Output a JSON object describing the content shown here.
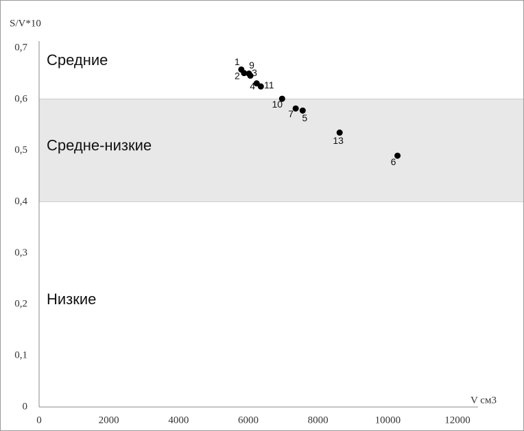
{
  "chart_data": {
    "type": "scatter",
    "ylabel": "S/V*10",
    "xlabel": "V см3",
    "x": [
      5800,
      5880,
      6020,
      6060,
      6240,
      6360,
      6970,
      7360,
      7560,
      8620,
      10280
    ],
    "values": [
      0.658,
      0.651,
      0.65,
      0.646,
      0.631,
      0.625,
      0.601,
      0.582,
      0.578,
      0.535,
      0.49
    ],
    "labels": [
      "1",
      "2",
      "9",
      "3",
      "4",
      "11",
      "10",
      "7",
      "5",
      "13",
      "6"
    ],
    "color": "#000000",
    "xlim": [
      0,
      12000
    ],
    "xticks": [
      0,
      2000,
      4000,
      6000,
      8000,
      10000,
      12000
    ],
    "ylim": [
      0,
      0.7
    ],
    "yticks": [
      0,
      {
        "value": 0.1,
        "label": "0,1"
      },
      {
        "value": 0.2,
        "label": "0,2"
      },
      {
        "value": 0.3,
        "label": "0,3"
      },
      {
        "value": 0.4,
        "label": "0,4"
      },
      {
        "value": 0.5,
        "label": "0,5"
      },
      {
        "value": 0.6,
        "label": "0,6"
      },
      {
        "value": 0.7,
        "label": "0,7"
      }
    ],
    "regions": [
      {
        "label": "Средние",
        "from": 0.6,
        "to": 0.7,
        "color": "#ffffff"
      },
      {
        "label": "Средне-низкие",
        "from": 0.4,
        "to": 0.6,
        "color": "#e8e8e8"
      },
      {
        "label": "Низкие",
        "from": 0,
        "to": 0.4,
        "color": "#ffffff"
      }
    ]
  }
}
